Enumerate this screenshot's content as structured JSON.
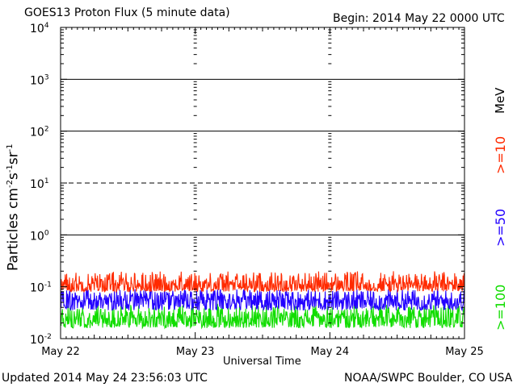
{
  "header": {
    "title": "GOES13 Proton Flux (5 minute data)",
    "begin": "Begin: 2014 May 22 0000 UTC"
  },
  "footer": {
    "updated": "Updated 2014 May 24 23:56:03 UTC",
    "credit": "NOAA/SWPC Boulder, CO USA"
  },
  "chart_data": {
    "type": "line",
    "title": "GOES13 Proton Flux (5 minute data)",
    "xlabel": "Universal Time",
    "ylabel": "Particles cm⁻²s⁻¹sr⁻¹",
    "ylabel_base": "Particles cm",
    "ylabel_parts": [
      "-2",
      "s",
      "-1",
      "sr",
      "-1"
    ],
    "x_ticks": [
      "May 22",
      "May 23",
      "May 24",
      "May 25"
    ],
    "xlim": [
      "2014-05-22 00:00",
      "2014-05-25 00:00"
    ],
    "yscale": "log",
    "ylim": [
      0.01,
      10000
    ],
    "y_ticks": [
      {
        "base": "10",
        "exp": "-2",
        "value": 0.01
      },
      {
        "base": "10",
        "exp": "-1",
        "value": 0.1
      },
      {
        "base": "10",
        "exp": "0",
        "value": 1
      },
      {
        "base": "10",
        "exp": "1",
        "value": 10
      },
      {
        "base": "10",
        "exp": "2",
        "value": 100
      },
      {
        "base": "10",
        "exp": "3",
        "value": 1000
      },
      {
        "base": "10",
        "exp": "4",
        "value": 10000
      }
    ],
    "reference_lines": [
      {
        "value": 1,
        "style": "solid"
      },
      {
        "value": 10,
        "style": "dashed"
      },
      {
        "value": 100,
        "style": "solid"
      },
      {
        "value": 1000,
        "style": "solid"
      }
    ],
    "unit_label": "MeV",
    "series": [
      {
        "name": ">=10",
        "color": "#ff2a00",
        "typical_range": [
          0.08,
          0.2
        ],
        "mean": 0.11
      },
      {
        "name": ">=50",
        "color": "#2200ff",
        "typical_range": [
          0.035,
          0.09
        ],
        "mean": 0.055
      },
      {
        "name": ">=100",
        "color": "#11dd00",
        "typical_range": [
          0.016,
          0.045
        ],
        "mean": 0.025
      }
    ],
    "sampling_minutes": 5,
    "grid": false,
    "legend_placement": "right-vertical"
  }
}
